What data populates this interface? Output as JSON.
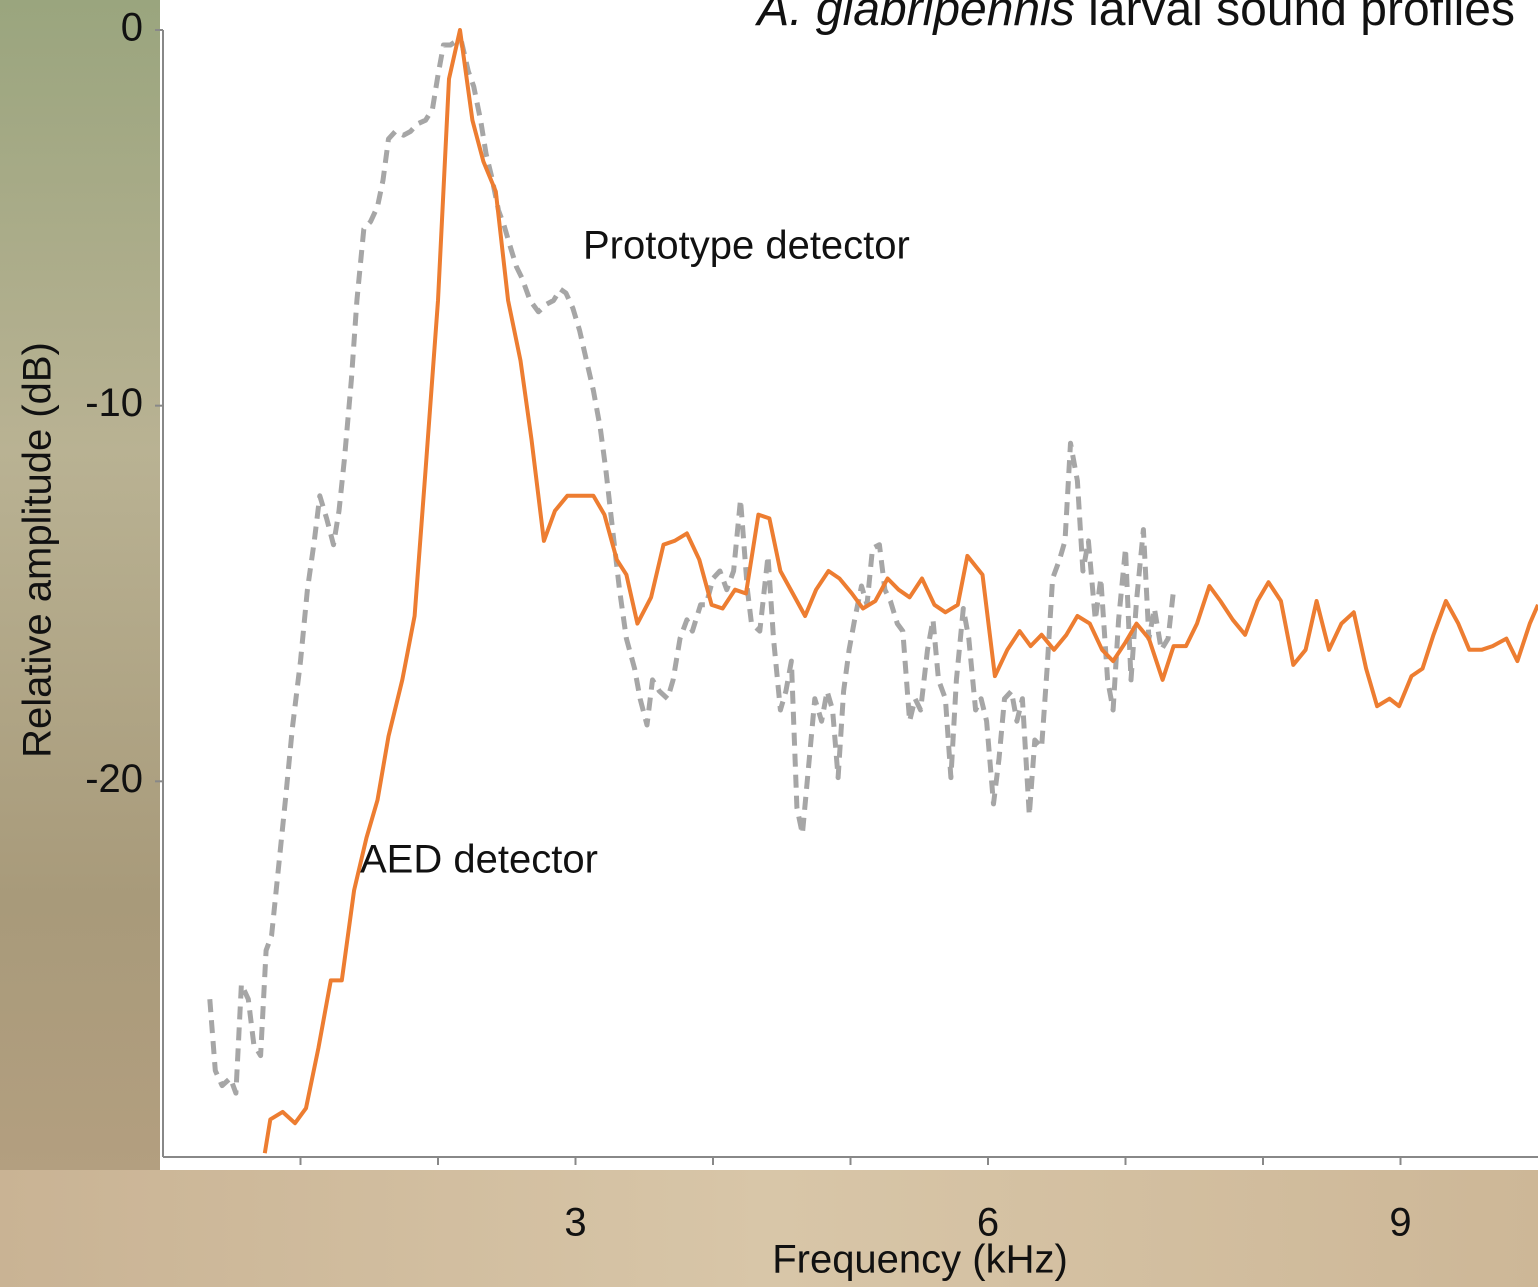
{
  "chart_data": {
    "type": "line",
    "title_species": "A. glabripennis",
    "title": "larval sound profiles",
    "x_label": "Frequency (kHz)",
    "y_label": "Relative amplitude (dB)",
    "xlim": [
      0,
      10
    ],
    "ylim": [
      -30,
      0
    ],
    "xticks": [
      3,
      6,
      9
    ],
    "x_minor_ticks": [
      1,
      2,
      4,
      5,
      7,
      8
    ],
    "yticks": [
      0,
      -10,
      -20
    ],
    "series": [
      {
        "name": "AED detector",
        "color": "#ed7d31",
        "dashed": false,
        "x": [
          0.74,
          0.78,
          0.87,
          0.96,
          1.04,
          1.13,
          1.22,
          1.3,
          1.39,
          1.48,
          1.56,
          1.64,
          1.74,
          1.83,
          1.91,
          2.0,
          2.08,
          2.16,
          2.25,
          2.33,
          2.42,
          2.51,
          2.6,
          2.68,
          2.77,
          2.85,
          2.94,
          3.03,
          3.13,
          3.21,
          3.3,
          3.37,
          3.45,
          3.55,
          3.64,
          3.72,
          3.81,
          3.9,
          3.99,
          4.07,
          4.16,
          4.24,
          4.33,
          4.41,
          4.49,
          4.58,
          4.67,
          4.75,
          4.84,
          4.92,
          5.01,
          5.09,
          5.18,
          5.27,
          5.35,
          5.43,
          5.52,
          5.61,
          5.69,
          5.78,
          5.85,
          5.96,
          6.05,
          6.14,
          6.23,
          6.31,
          6.39,
          6.48,
          6.57,
          6.65,
          6.74,
          6.83,
          6.91,
          7.0,
          7.08,
          7.17,
          7.27,
          7.35,
          7.44,
          7.52,
          7.61,
          7.69,
          7.78,
          7.87,
          7.96,
          8.04,
          8.13,
          8.22,
          8.31,
          8.39,
          8.48,
          8.57,
          8.66,
          8.75,
          8.83,
          8.92,
          8.99,
          9.08,
          9.16,
          9.24,
          9.33,
          9.42,
          9.5,
          9.59,
          9.67,
          9.77,
          9.85,
          9.94,
          10.0
        ],
        "values": [
          -29.9,
          -29.0,
          -28.8,
          -29.1,
          -28.7,
          -27.1,
          -25.3,
          -25.3,
          -22.9,
          -21.5,
          -20.5,
          -18.8,
          -17.3,
          -15.6,
          -11.7,
          -7.2,
          -1.3,
          0,
          -2.4,
          -3.5,
          -4.3,
          -7.2,
          -8.8,
          -10.9,
          -13.6,
          -12.8,
          -12.4,
          -12.4,
          -12.4,
          -12.9,
          -14.1,
          -14.5,
          -15.8,
          -15.1,
          -13.7,
          -13.6,
          -13.4,
          -14.1,
          -15.3,
          -15.4,
          -14.9,
          -15.0,
          -12.9,
          -13.0,
          -14.4,
          -15.0,
          -15.6,
          -14.9,
          -14.4,
          -14.6,
          -15.0,
          -15.4,
          -15.2,
          -14.6,
          -14.9,
          -15.1,
          -14.6,
          -15.3,
          -15.5,
          -15.3,
          -14.0,
          -14.5,
          -17.2,
          -16.5,
          -16.0,
          -16.4,
          -16.1,
          -16.5,
          -16.1,
          -15.6,
          -15.8,
          -16.5,
          -16.8,
          -16.3,
          -15.8,
          -16.2,
          -17.3,
          -16.4,
          -16.4,
          -15.8,
          -14.8,
          -15.2,
          -15.7,
          -16.1,
          -15.2,
          -14.7,
          -15.2,
          -16.9,
          -16.5,
          -15.2,
          -16.5,
          -15.8,
          -15.5,
          -17.0,
          -18.0,
          -17.8,
          -18.0,
          -17.2,
          -17.0,
          -16.1,
          -15.2,
          -15.8,
          -16.5,
          -16.5,
          -16.4,
          -16.2,
          -16.8,
          -15.8,
          -15.3
        ]
      },
      {
        "name": "Prototype detector",
        "color": "#a6a6a6",
        "dashed": true,
        "x": [
          0.34,
          0.38,
          0.43,
          0.49,
          0.53,
          0.57,
          0.62,
          0.66,
          0.71,
          0.75,
          0.79,
          0.84,
          0.89,
          0.94,
          1.0,
          1.05,
          1.1,
          1.14,
          1.19,
          1.24,
          1.28,
          1.32,
          1.37,
          1.41,
          1.46,
          1.51,
          1.56,
          1.6,
          1.64,
          1.69,
          1.75,
          1.8,
          1.85,
          1.91,
          1.96,
          2.0,
          2.04,
          2.09,
          2.13,
          2.17,
          2.22,
          2.26,
          2.31,
          2.35,
          2.39,
          2.44,
          2.48,
          2.52,
          2.57,
          2.61,
          2.67,
          2.73,
          2.79,
          2.84,
          2.89,
          2.93,
          2.98,
          3.03,
          3.08,
          3.13,
          3.18,
          3.22,
          3.27,
          3.32,
          3.37,
          3.43,
          3.47,
          3.52,
          3.56,
          3.61,
          3.67,
          3.71,
          3.76,
          3.81,
          3.85,
          3.91,
          3.95,
          4.0,
          4.05,
          4.1,
          4.15,
          4.2,
          4.25,
          4.28,
          4.34,
          4.4,
          4.44,
          4.49,
          4.53,
          4.57,
          4.61,
          4.65,
          4.7,
          4.74,
          4.79,
          4.83,
          4.87,
          4.91,
          4.95,
          4.99,
          5.03,
          5.08,
          5.12,
          5.16,
          5.21,
          5.25,
          5.29,
          5.34,
          5.38,
          5.43,
          5.47,
          5.51,
          5.56,
          5.6,
          5.64,
          5.69,
          5.73,
          5.77,
          5.82,
          5.86,
          5.91,
          5.95,
          5.99,
          6.04,
          6.08,
          6.12,
          6.17,
          6.21,
          6.25,
          6.3,
          6.34,
          6.39,
          6.43,
          6.47,
          6.52,
          6.56,
          6.6,
          6.65,
          6.69,
          6.73,
          6.78,
          6.82,
          6.87,
          6.91,
          6.95,
          7.0,
          7.04,
          7.08,
          7.13,
          7.17,
          7.21,
          7.26,
          7.31,
          7.35
        ],
        "values": [
          -25.8,
          -27.7,
          -28.1,
          -27.9,
          -28.3,
          -25.4,
          -25.8,
          -27.0,
          -27.3,
          -24.5,
          -24.1,
          -22.3,
          -20.5,
          -18.6,
          -16.8,
          -14.9,
          -13.6,
          -12.4,
          -13.0,
          -13.7,
          -12.8,
          -11.4,
          -9.3,
          -7.2,
          -5.3,
          -5.1,
          -4.7,
          -4.0,
          -2.9,
          -2.7,
          -2.8,
          -2.7,
          -2.5,
          -2.4,
          -2.1,
          -1.2,
          -0.4,
          -0.4,
          -0.3,
          -0.3,
          -1.1,
          -1.5,
          -2.4,
          -3.3,
          -3.9,
          -4.8,
          -5.2,
          -5.7,
          -6.3,
          -6.6,
          -7.2,
          -7.5,
          -7.3,
          -7.2,
          -6.9,
          -7.0,
          -7.4,
          -8.0,
          -8.8,
          -9.6,
          -10.6,
          -11.7,
          -13.3,
          -14.9,
          -16.2,
          -17.0,
          -17.8,
          -18.5,
          -17.3,
          -17.6,
          -17.8,
          -17.3,
          -16.2,
          -15.7,
          -16.0,
          -15.3,
          -15.3,
          -14.6,
          -14.4,
          -14.9,
          -14.4,
          -12.5,
          -14.9,
          -15.8,
          -16.0,
          -14.0,
          -16.2,
          -18.1,
          -17.6,
          -16.8,
          -20.7,
          -21.4,
          -19.4,
          -17.8,
          -18.4,
          -17.6,
          -18.1,
          -19.9,
          -17.6,
          -16.5,
          -15.7,
          -14.8,
          -15.3,
          -13.8,
          -13.7,
          -14.9,
          -15.2,
          -15.8,
          -16.0,
          -18.4,
          -17.8,
          -18.1,
          -16.5,
          -15.7,
          -17.3,
          -17.8,
          -19.9,
          -17.3,
          -15.4,
          -16.2,
          -18.1,
          -17.8,
          -18.4,
          -20.6,
          -19.4,
          -17.8,
          -17.6,
          -18.4,
          -17.8,
          -20.9,
          -18.9,
          -19.1,
          -17.0,
          -14.6,
          -14.1,
          -13.6,
          -11.0,
          -12.0,
          -14.4,
          -13.6,
          -15.7,
          -14.6,
          -17.3,
          -18.1,
          -15.7,
          -13.8,
          -17.3,
          -15.2,
          -13.3,
          -16.2,
          -15.4,
          -16.5,
          -16.2,
          -14.9
        ]
      }
    ]
  }
}
